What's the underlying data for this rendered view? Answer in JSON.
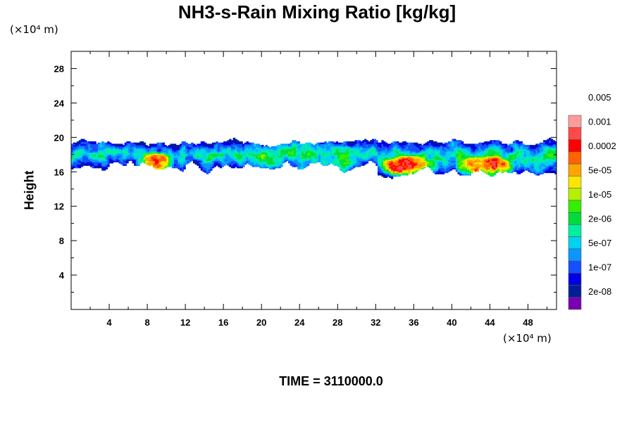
{
  "chart_data": {
    "type": "heatmap",
    "title": "NH3-s-Rain Mixing Ratio [kg/kg]",
    "ylabel": "Height",
    "x_unit_label": "(×10⁴ m)",
    "y_unit_label": "(×10⁴ m)",
    "footer": "TIME = 3110000.0",
    "xlim": [
      0,
      51
    ],
    "ylim": [
      0,
      30
    ],
    "x_ticks": [
      4,
      8,
      12,
      16,
      20,
      24,
      28,
      32,
      36,
      40,
      44,
      48
    ],
    "y_ticks": [
      4,
      8,
      12,
      16,
      20,
      24,
      28
    ],
    "colorbar": {
      "colors": [
        "#7a00b4",
        "#001e96",
        "#0000e6",
        "#1450ff",
        "#0a96ff",
        "#00d2f0",
        "#00f0a0",
        "#00dc3c",
        "#32f000",
        "#b4f000",
        "#ffe600",
        "#ffa500",
        "#ff6400",
        "#ff0000",
        "#ff4a4a",
        "#ff9b9b"
      ],
      "labels": [
        "2e-08",
        "1e-07",
        "5e-07",
        "2e-06",
        "1e-05",
        "5e-05",
        "0.0002",
        "0.001",
        "0.005"
      ]
    },
    "cloud_layer": {
      "height_range": [
        15,
        20
      ],
      "peak_regions": [
        {
          "x_range": [
            7.5,
            10
          ],
          "height": 17
        },
        {
          "x_range": [
            33,
            38
          ],
          "height": 16.5
        },
        {
          "x_range": [
            41,
            46
          ],
          "height": 16.5
        }
      ]
    }
  }
}
